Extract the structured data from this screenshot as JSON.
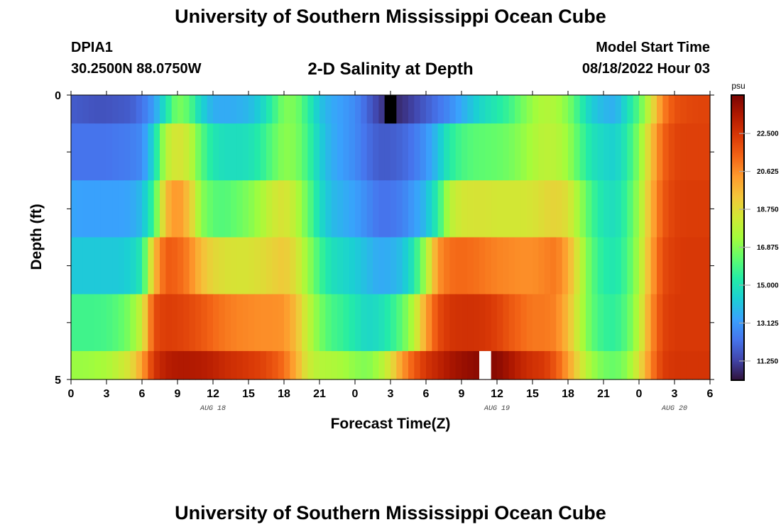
{
  "header": {
    "title": "University of Southern Mississippi Ocean Cube",
    "station_id": "DPIA1",
    "coordinates": "30.2500N  88.0750W",
    "plot_title": "2-D Salinity at Depth",
    "model_start_label": "Model Start Time",
    "model_start_value": "08/18/2022 Hour 03"
  },
  "footer": {
    "title": "University of Southern Mississippi Ocean Cube"
  },
  "chart_data": {
    "type": "heatmap",
    "title": "2-D Salinity at Depth",
    "xlabel": "Forecast Time(Z)",
    "ylabel": "Depth (ft)",
    "x_ticks": [
      "0",
      "3",
      "6",
      "9",
      "12",
      "15",
      "18",
      "21",
      "0",
      "3",
      "6",
      "9",
      "12",
      "15",
      "18",
      "21",
      "0",
      "3",
      "6"
    ],
    "x_range_hours": [
      0,
      54
    ],
    "date_labels": [
      {
        "label": "AUG 18",
        "hour": 12
      },
      {
        "label": "AUG 19",
        "hour": 36
      },
      {
        "label": "AUG 20",
        "hour": 51
      }
    ],
    "y_ticks": [
      "0",
      "5"
    ],
    "y_range": [
      0,
      5
    ],
    "colorbar": {
      "unit": "psu",
      "min": 10.3,
      "max": 24.4,
      "ticks": [
        "22.500",
        "20.625",
        "18.750",
        "16.875",
        "15.000",
        "13.125",
        "11.250"
      ],
      "colors": [
        "#30123b",
        "#4145ab",
        "#4675ed",
        "#39a2fc",
        "#1bcfd4",
        "#24eca6",
        "#61fc6c",
        "#a4fc3b",
        "#d1e834",
        "#f3c63a",
        "#fe9b2d",
        "#f36315",
        "#d93806",
        "#b11901",
        "#7a0402"
      ]
    },
    "hours": [
      0,
      1,
      2,
      3,
      4,
      5,
      6,
      7,
      8,
      9,
      10,
      11,
      12,
      13,
      14,
      15,
      16,
      17,
      18,
      19,
      20,
      21,
      22,
      23,
      24,
      25,
      26,
      27,
      28,
      29,
      30,
      31,
      32,
      33,
      34,
      35,
      36,
      37,
      38,
      39,
      40,
      41,
      42,
      43,
      44,
      45,
      46,
      47,
      48,
      49,
      50,
      51,
      52,
      53,
      54
    ],
    "layers": [
      {
        "depth_from": 0,
        "depth_to": 0.5,
        "values": [
          11.8,
          11.7,
          11.6,
          11.6,
          11.7,
          11.8,
          12.3,
          13.2,
          15.0,
          16.8,
          16.2,
          14.5,
          13.6,
          13.5,
          13.6,
          13.8,
          14.4,
          15.5,
          16.8,
          16.7,
          15.5,
          14.1,
          13.5,
          13.2,
          12.8,
          12.0,
          11.2,
          10.6,
          10.9,
          11.3,
          11.8,
          12.3,
          12.8,
          13.5,
          14.2,
          14.8,
          15.2,
          15.7,
          16.5,
          17.2,
          17.7,
          17.5,
          16.8,
          15.5,
          14.3,
          13.8,
          13.6,
          14.8,
          16.2,
          18.4,
          20.8,
          21.8,
          22.0,
          22.1,
          22.1
        ]
      },
      {
        "depth_from": 0.5,
        "depth_to": 1.5,
        "values": [
          12.3,
          12.3,
          12.3,
          12.3,
          12.4,
          12.5,
          12.8,
          14.6,
          17.8,
          18.6,
          18.0,
          16.2,
          15.1,
          14.8,
          14.8,
          14.9,
          15.4,
          16.2,
          17.0,
          16.8,
          15.8,
          14.4,
          13.6,
          13.2,
          12.8,
          12.2,
          11.8,
          11.8,
          12.0,
          12.4,
          13.0,
          14.0,
          15.3,
          15.9,
          16.2,
          16.3,
          16.4,
          16.6,
          17.0,
          17.5,
          17.9,
          17.8,
          17.2,
          16.0,
          15.0,
          14.6,
          14.4,
          15.3,
          16.9,
          19.4,
          21.4,
          22.1,
          22.2,
          22.2,
          22.2
        ]
      },
      {
        "depth_from": 1.5,
        "depth_to": 2.5,
        "values": [
          13.4,
          13.3,
          13.3,
          13.3,
          13.3,
          13.4,
          13.9,
          15.8,
          19.6,
          20.6,
          19.4,
          17.0,
          16.2,
          16.1,
          16.4,
          16.8,
          17.4,
          18.2,
          18.6,
          17.8,
          16.4,
          14.8,
          13.9,
          13.6,
          13.3,
          12.8,
          12.3,
          12.3,
          12.6,
          13.2,
          13.9,
          15.4,
          17.8,
          18.4,
          18.5,
          18.5,
          18.4,
          18.4,
          18.4,
          18.5,
          18.8,
          19.0,
          18.6,
          17.2,
          15.8,
          15.0,
          14.8,
          15.7,
          17.3,
          19.8,
          21.6,
          22.2,
          22.3,
          22.3,
          22.3
        ]
      },
      {
        "depth_from": 2.5,
        "depth_to": 3.5,
        "values": [
          14.2,
          14.2,
          14.2,
          14.2,
          14.2,
          14.4,
          15.2,
          19.6,
          21.6,
          21.4,
          20.8,
          19.6,
          18.9,
          18.6,
          18.5,
          18.5,
          18.7,
          19.0,
          19.3,
          18.6,
          17.2,
          15.8,
          14.9,
          14.6,
          14.3,
          13.9,
          13.5,
          13.6,
          14.0,
          15.2,
          17.5,
          20.5,
          21.2,
          21.3,
          21.2,
          21.0,
          20.8,
          20.7,
          20.6,
          20.6,
          20.8,
          21.0,
          20.0,
          18.0,
          16.2,
          15.3,
          15.1,
          15.9,
          17.5,
          20.1,
          21.9,
          22.3,
          22.4,
          22.4,
          22.4
        ]
      },
      {
        "depth_from": 3.5,
        "depth_to": 4.5,
        "values": [
          15.8,
          15.8,
          15.8,
          15.9,
          16.2,
          16.8,
          18.2,
          21.9,
          22.3,
          22.2,
          22.0,
          21.7,
          21.3,
          21.0,
          20.8,
          20.7,
          20.6,
          20.6,
          20.5,
          19.6,
          18.0,
          16.7,
          15.9,
          15.6,
          15.1,
          14.6,
          14.8,
          15.4,
          16.3,
          17.8,
          20.2,
          21.9,
          22.5,
          22.6,
          22.6,
          22.5,
          22.2,
          21.7,
          21.3,
          21.0,
          21.0,
          20.8,
          19.6,
          17.8,
          16.3,
          15.6,
          15.5,
          16.2,
          17.8,
          20.5,
          22.1,
          22.4,
          22.4,
          22.4,
          22.4
        ]
      },
      {
        "depth_from": 4.5,
        "depth_to": 5,
        "values": [
          17.2,
          17.2,
          17.3,
          17.5,
          18.0,
          18.6,
          20.2,
          22.5,
          23.2,
          23.4,
          23.4,
          23.3,
          23.1,
          22.8,
          22.6,
          22.4,
          22.2,
          21.8,
          21.2,
          20.0,
          18.3,
          17.7,
          17.6,
          17.4,
          17.0,
          16.8,
          17.4,
          18.6,
          20.4,
          21.6,
          22.5,
          23.0,
          23.5,
          23.8,
          24.0,
          24.2,
          24.1,
          23.6,
          23.0,
          22.6,
          22.4,
          21.6,
          20.3,
          18.6,
          17.3,
          16.6,
          16.4,
          17.0,
          18.6,
          20.8,
          22.3,
          22.5,
          22.5,
          22.5,
          22.5
        ]
      }
    ],
    "missing_cells": [
      {
        "depth_from": 0,
        "depth_to": 0.5,
        "hour": 27,
        "fill": "#000000"
      },
      {
        "depth_from": 4.5,
        "depth_to": 5,
        "hour": 35,
        "fill": "#ffffff"
      }
    ]
  }
}
